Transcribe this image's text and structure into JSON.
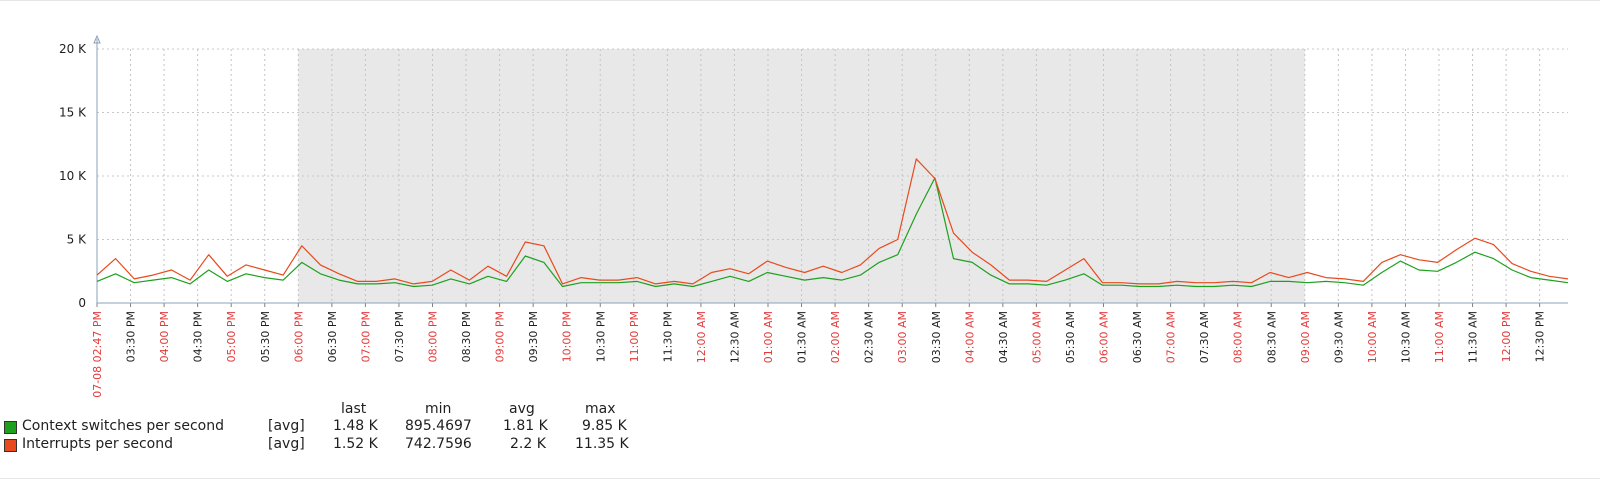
{
  "chart_data": {
    "type": "line",
    "y_ticks": [
      "0",
      "5 K",
      "10 K",
      "15 K",
      "20 K"
    ],
    "ylim": [
      0,
      20000
    ],
    "grid": true,
    "x_labels": [
      {
        "t": "07-08 02:47 PM",
        "major": true
      },
      {
        "t": "03:30 PM",
        "major": false
      },
      {
        "t": "04:00 PM",
        "major": true
      },
      {
        "t": "04:30 PM",
        "major": false
      },
      {
        "t": "05:00 PM",
        "major": true
      },
      {
        "t": "05:30 PM",
        "major": false
      },
      {
        "t": "06:00 PM",
        "major": true
      },
      {
        "t": "06:30 PM",
        "major": false
      },
      {
        "t": "07:00 PM",
        "major": true
      },
      {
        "t": "07:30 PM",
        "major": false
      },
      {
        "t": "08:00 PM",
        "major": true
      },
      {
        "t": "08:30 PM",
        "major": false
      },
      {
        "t": "09:00 PM",
        "major": true
      },
      {
        "t": "09:30 PM",
        "major": false
      },
      {
        "t": "10:00 PM",
        "major": true
      },
      {
        "t": "10:30 PM",
        "major": false
      },
      {
        "t": "11:00 PM",
        "major": true
      },
      {
        "t": "11:30 PM",
        "major": false
      },
      {
        "t": "12:00 AM",
        "major": true
      },
      {
        "t": "12:30 AM",
        "major": false
      },
      {
        "t": "01:00 AM",
        "major": true
      },
      {
        "t": "01:30 AM",
        "major": false
      },
      {
        "t": "02:00 AM",
        "major": true
      },
      {
        "t": "02:30 AM",
        "major": false
      },
      {
        "t": "03:00 AM",
        "major": true
      },
      {
        "t": "03:30 AM",
        "major": false
      },
      {
        "t": "04:00 AM",
        "major": true
      },
      {
        "t": "04:30 AM",
        "major": false
      },
      {
        "t": "05:00 AM",
        "major": true
      },
      {
        "t": "05:30 AM",
        "major": false
      },
      {
        "t": "06:00 AM",
        "major": true
      },
      {
        "t": "06:30 AM",
        "major": false
      },
      {
        "t": "07:00 AM",
        "major": true
      },
      {
        "t": "07:30 AM",
        "major": false
      },
      {
        "t": "08:00 AM",
        "major": true
      },
      {
        "t": "08:30 AM",
        "major": false
      },
      {
        "t": "09:00 AM",
        "major": true
      },
      {
        "t": "09:30 AM",
        "major": false
      },
      {
        "t": "10:00 AM",
        "major": true
      },
      {
        "t": "10:30 AM",
        "major": false
      },
      {
        "t": "11:00 AM",
        "major": true
      },
      {
        "t": "11:30 AM",
        "major": false
      },
      {
        "t": "12:00 PM",
        "major": true
      },
      {
        "t": "12:30 PM",
        "major": false
      }
    ],
    "shaded_period": {
      "from": "06:00 PM",
      "to": "09:00 AM",
      "color": "#e8e8e8"
    },
    "series": [
      {
        "name": "Context switches per second",
        "color": "#1ea01e",
        "aggregation": "[avg]",
        "last": "1.48 K",
        "min": "895.4697",
        "avg": "1.81 K",
        "max": "9.85 K",
        "values": [
          1700,
          2300,
          1600,
          1800,
          2000,
          1500,
          2600,
          1700,
          2300,
          2000,
          1800,
          3200,
          2300,
          1800,
          1500,
          1500,
          1600,
          1300,
          1400,
          1900,
          1500,
          2100,
          1700,
          3700,
          3200,
          1300,
          1600,
          1600,
          1600,
          1700,
          1300,
          1500,
          1300,
          1700,
          2100,
          1700,
          2400,
          2100,
          1800,
          2000,
          1800,
          2200,
          3200,
          3800,
          7000,
          9850,
          3500,
          3200,
          2200,
          1500,
          1500,
          1400,
          1800,
          2300,
          1400,
          1400,
          1300,
          1300,
          1400,
          1300,
          1300,
          1400,
          1300,
          1700,
          1700,
          1600,
          1700,
          1600,
          1400,
          2400,
          3300,
          2600,
          2500,
          3200,
          4000,
          3500,
          2600,
          2000,
          1800,
          1600
        ]
      },
      {
        "name": "Interrupts per second",
        "color": "#e84a1e",
        "aggregation": "[avg]",
        "last": "1.52 K",
        "min": "742.7596",
        "avg": "2.2 K",
        "max": "11.35 K",
        "values": [
          2200,
          3500,
          1900,
          2200,
          2600,
          1800,
          3800,
          2100,
          3000,
          2600,
          2200,
          4500,
          3000,
          2300,
          1700,
          1700,
          1900,
          1500,
          1700,
          2600,
          1800,
          2900,
          2100,
          4800,
          4500,
          1500,
          2000,
          1800,
          1800,
          2000,
          1500,
          1700,
          1500,
          2400,
          2700,
          2300,
          3300,
          2800,
          2400,
          2900,
          2400,
          3000,
          4300,
          5000,
          11350,
          9800,
          5500,
          4000,
          3000,
          1800,
          1800,
          1700,
          2600,
          3500,
          1600,
          1600,
          1500,
          1500,
          1700,
          1600,
          1600,
          1700,
          1600,
          2400,
          2000,
          2400,
          2000,
          1900,
          1700,
          3200,
          3800,
          3400,
          3200,
          4200,
          5100,
          4600,
          3100,
          2500,
          2100,
          1900
        ]
      }
    ]
  },
  "legend": {
    "headers": [
      "last",
      "min",
      "avg",
      "max"
    ]
  }
}
